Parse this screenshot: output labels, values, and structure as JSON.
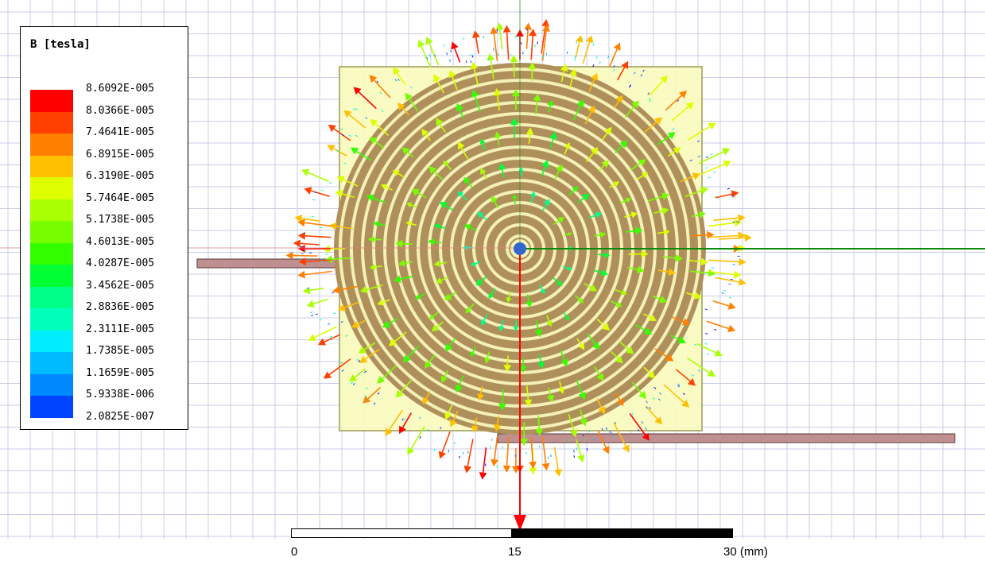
{
  "legend": {
    "title": "B [tesla]",
    "entries": [
      {
        "value": "8.6092E-005",
        "color": "#ff0000"
      },
      {
        "value": "8.0366E-005",
        "color": "#ff4000"
      },
      {
        "value": "7.4641E-005",
        "color": "#ff8000"
      },
      {
        "value": "6.8915E-005",
        "color": "#ffc000"
      },
      {
        "value": "6.3190E-005",
        "color": "#ddff00"
      },
      {
        "value": "5.7464E-005",
        "color": "#aaff00"
      },
      {
        "value": "5.1738E-005",
        "color": "#77ff00"
      },
      {
        "value": "4.6013E-005",
        "color": "#33ff00"
      },
      {
        "value": "4.0287E-005",
        "color": "#00ff33"
      },
      {
        "value": "3.4562E-005",
        "color": "#00ff88"
      },
      {
        "value": "2.8836E-005",
        "color": "#00ffbb"
      },
      {
        "value": "2.3111E-005",
        "color": "#00eeff"
      },
      {
        "value": "1.7385E-005",
        "color": "#00bbff"
      },
      {
        "value": "1.1659E-005",
        "color": "#0088ff"
      },
      {
        "value": "5.9338E-006",
        "color": "#0044ff"
      },
      {
        "value": "2.0825E-007",
        "color": "#0000ff"
      }
    ]
  },
  "scale": {
    "labels": [
      "0",
      "15",
      "30 (mm)"
    ]
  },
  "colors": {
    "grid": "#c9cde8",
    "substrate_fill": "#fafac0",
    "substrate_border": "#9a9a55",
    "coil": "#b0905a",
    "coil_gap": "#f3f0b8",
    "lead": "#c09090",
    "axis_x": "#0a8a0a",
    "axis_y": "#ff0000",
    "origin": "#3366cc"
  },
  "field_vectors": {
    "quantity": "B",
    "unit": "tesla",
    "max": 8.6092e-05,
    "min": 2.0825e-07
  }
}
